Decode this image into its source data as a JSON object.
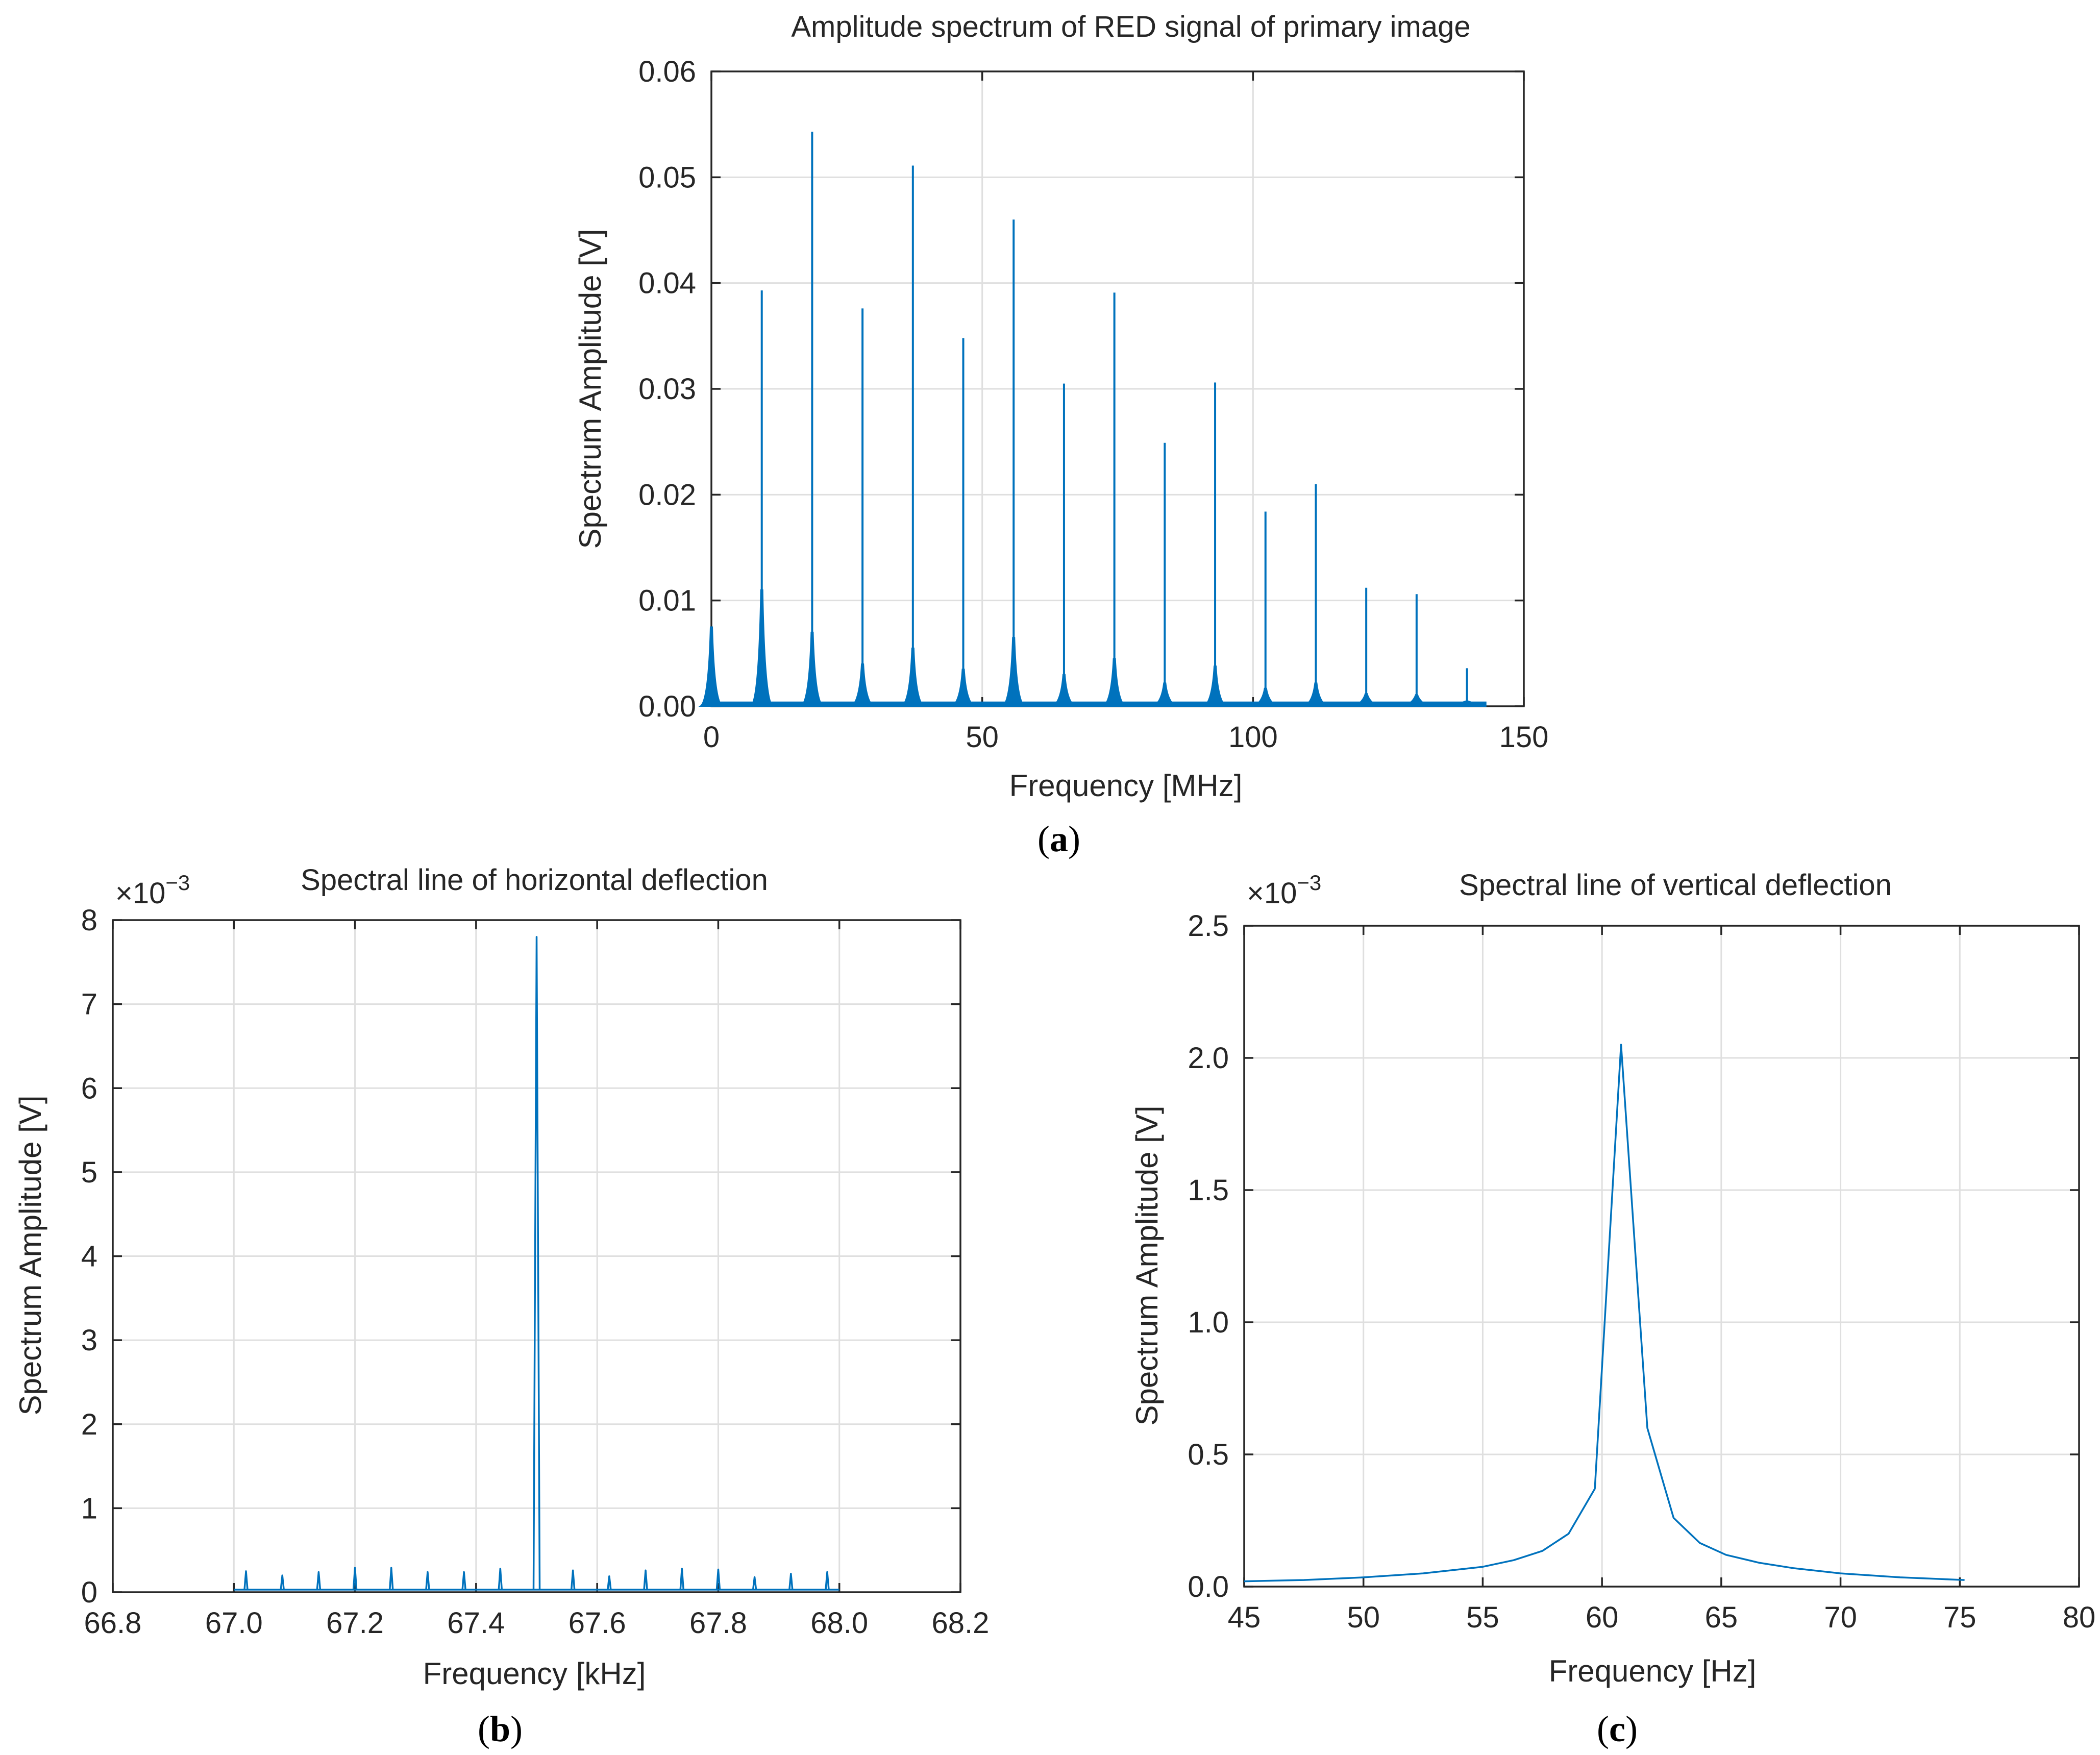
{
  "chart_data": [
    {
      "id": "a",
      "type": "line",
      "panel_label": "a",
      "title": "Amplitude spectrum of RED signal of primary image",
      "xlabel": "Frequency [MHz]",
      "ylabel": "Spectrum Amplitude [V]",
      "xlim": [
        0,
        150
      ],
      "ylim": [
        0,
        0.06
      ],
      "xticks": [
        0,
        50,
        100,
        150
      ],
      "xtick_labels": [
        "0",
        "50",
        "100",
        "150"
      ],
      "yticks": [
        0,
        0.01,
        0.02,
        0.03,
        0.04,
        0.05,
        0.06
      ],
      "ytick_labels": [
        "0.00",
        "0.01",
        "0.02",
        "0.03",
        "0.04",
        "0.05",
        "0.06"
      ],
      "grid": true,
      "exponent_label": "",
      "series": [
        {
          "name": "RED spectrum",
          "color": "#0072bd",
          "peaks_x": [
            0,
            9.3,
            18.6,
            27.9,
            37.2,
            46.5,
            55.8,
            65.1,
            74.4,
            83.7,
            93.0,
            102.3,
            111.6,
            120.9,
            130.2,
            139.5
          ],
          "peaks_y": [
            0.0075,
            0.0393,
            0.0543,
            0.0376,
            0.0511,
            0.0348,
            0.046,
            0.0305,
            0.0391,
            0.0249,
            0.0306,
            0.0184,
            0.021,
            0.0112,
            0.0106,
            0.0036
          ],
          "peak_base_y": [
            0.0075,
            0.011,
            0.007,
            0.004,
            0.0055,
            0.0035,
            0.0065,
            0.003,
            0.0045,
            0.0022,
            0.0038,
            0.0017,
            0.0022,
            0.0012,
            0.0011,
            0.0005
          ],
          "noise_floor": 0.0004
        }
      ]
    },
    {
      "id": "b",
      "type": "line",
      "panel_label": "b",
      "title": "Spectral line of horizontal deflection",
      "xlabel": "Frequency [kHz]",
      "ylabel": "Spectrum Amplitude [V]",
      "xlim": [
        66.8,
        68.2
      ],
      "ylim": [
        0,
        8
      ],
      "xticks": [
        66.8,
        67.0,
        67.2,
        67.4,
        67.6,
        67.8,
        68.0,
        68.2
      ],
      "xtick_labels": [
        "66.8",
        "67.0",
        "67.2",
        "67.4",
        "67.6",
        "67.8",
        "68.0",
        "68.2"
      ],
      "yticks": [
        0,
        1,
        2,
        3,
        4,
        5,
        6,
        7,
        8
      ],
      "ytick_labels": [
        "0",
        "1",
        "2",
        "3",
        "4",
        "5",
        "6",
        "7",
        "8"
      ],
      "grid": true,
      "exponent_label": "×10",
      "exponent_power": "−3",
      "series": [
        {
          "name": "horizontal deflection",
          "color": "#0072bd",
          "x_start": 67.0,
          "x_end": 68.0,
          "floor": 0.03,
          "peaks_x": [
            67.02,
            67.08,
            67.14,
            67.2,
            67.26,
            67.32,
            67.38,
            67.44,
            67.5,
            67.56,
            67.62,
            67.68,
            67.74,
            67.8,
            67.86,
            67.92,
            67.98
          ],
          "peaks_y": [
            0.25,
            0.2,
            0.24,
            0.29,
            0.29,
            0.24,
            0.24,
            0.28,
            7.8,
            0.26,
            0.19,
            0.26,
            0.28,
            0.27,
            0.18,
            0.22,
            0.24
          ]
        }
      ]
    },
    {
      "id": "c",
      "type": "line",
      "panel_label": "c",
      "title": "Spectral line of vertical deflection",
      "xlabel": "Frequency [Hz]",
      "ylabel": "Spectrum Amplitude [V]",
      "xlim": [
        45,
        80
      ],
      "ylim": [
        0,
        2.5
      ],
      "xticks": [
        45,
        50,
        55,
        60,
        65,
        70,
        75,
        80
      ],
      "xtick_labels": [
        "45",
        "50",
        "55",
        "60",
        "65",
        "70",
        "75",
        "80"
      ],
      "yticks": [
        0,
        0.5,
        1.0,
        1.5,
        2.0,
        2.5
      ],
      "ytick_labels": [
        "0.0",
        "0.5",
        "1.0",
        "1.5",
        "2.0",
        "2.5"
      ],
      "grid": true,
      "exponent_label": "×10",
      "exponent_power": "−3",
      "series": [
        {
          "name": "vertical deflection",
          "color": "#0072bd",
          "x": [
            45.0,
            47.5,
            50.0,
            52.5,
            55.0,
            56.3,
            57.5,
            58.6,
            59.7,
            60.8,
            61.9,
            63.0,
            64.1,
            65.2,
            66.6,
            68.0,
            70.0,
            72.5,
            75.2
          ],
          "y": [
            0.02,
            0.025,
            0.035,
            0.05,
            0.075,
            0.1,
            0.135,
            0.2,
            0.37,
            2.05,
            0.6,
            0.26,
            0.165,
            0.12,
            0.09,
            0.07,
            0.05,
            0.035,
            0.025
          ]
        }
      ]
    }
  ]
}
